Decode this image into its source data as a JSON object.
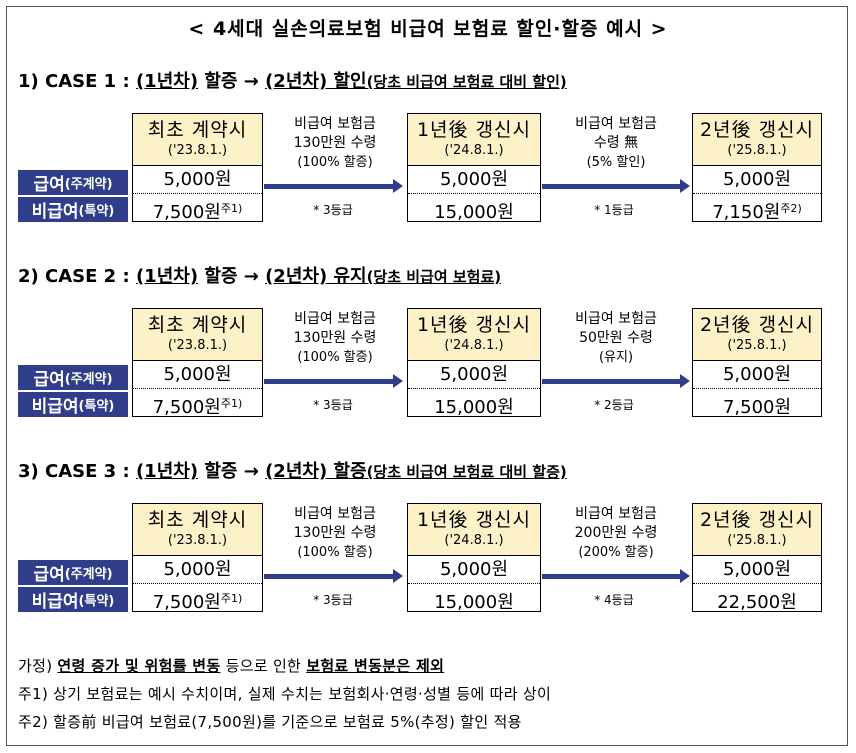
{
  "title": "< 4세대 실손의료보험 비급여 보험료 할인·할증 예시 >",
  "row_labels": {
    "covered": "급여",
    "covered_sub": "(주계약)",
    "noncovered": "비급여",
    "noncovered_sub": "(특약)"
  },
  "cases": [
    {
      "head_main_1": "1) CASE 1 : ",
      "head_u1": "(1년차)",
      "head_main_2": " 할증 → ",
      "head_u2": "(2년차) 할인",
      "head_note": "(당초 비급여 보험료 대비 할인)",
      "box1": {
        "title": "최초 계약시",
        "date": "('23.8.1.)",
        "covered": "5,000원",
        "noncovered": "7,500원",
        "sup": "주1)"
      },
      "mid1": {
        "l1": "비급여 보험금",
        "l2": "130만원 수령",
        "l3": "(100% 할증)",
        "grade": "* 3등급"
      },
      "box2": {
        "title": "1년後 갱신시",
        "date": "('24.8.1.)",
        "covered": "5,000원",
        "noncovered": "15,000원",
        "sup": ""
      },
      "mid2": {
        "l1": "비급여 보험금",
        "l2": "수령 無",
        "l3": "(5% 할인)",
        "grade": "* 1등급"
      },
      "box3": {
        "title": "2년後 갱신시",
        "date": "('25.8.1.)",
        "covered": "5,000원",
        "noncovered": "7,150원",
        "sup": "주2)"
      }
    },
    {
      "head_main_1": "2) CASE 2 : ",
      "head_u1": "(1년차)",
      "head_main_2": " 할증 → ",
      "head_u2": "(2년차) 유지",
      "head_note": "(당초 비급여 보험료)",
      "box1": {
        "title": "최초 계약시",
        "date": "('23.8.1.)",
        "covered": "5,000원",
        "noncovered": "7,500원",
        "sup": "주1)"
      },
      "mid1": {
        "l1": "비급여 보험금",
        "l2": "130만원 수령",
        "l3": "(100% 할증)",
        "grade": "* 3등급"
      },
      "box2": {
        "title": "1년後 갱신시",
        "date": "('24.8.1.)",
        "covered": "5,000원",
        "noncovered": "15,000원",
        "sup": ""
      },
      "mid2": {
        "l1": "비급여 보험금",
        "l2": "50만원 수령",
        "l3": "(유지)",
        "grade": "* 2등급"
      },
      "box3": {
        "title": "2년後 갱신시",
        "date": "('25.8.1.)",
        "covered": "5,000원",
        "noncovered": "7,500원",
        "sup": ""
      }
    },
    {
      "head_main_1": "3) CASE 3 : ",
      "head_u1": "(1년차)",
      "head_main_2": " 할증 → ",
      "head_u2": "(2년차) 할증",
      "head_note": "(당초 비급여 보험료 대비 할증)",
      "box1": {
        "title": "최초 계약시",
        "date": "('23.8.1.)",
        "covered": "5,000원",
        "noncovered": "7,500원",
        "sup": "주1)"
      },
      "mid1": {
        "l1": "비급여 보험금",
        "l2": "130만원 수령",
        "l3": "(100% 할증)",
        "grade": "* 3등급"
      },
      "box2": {
        "title": "1년後 갱신시",
        "date": "('24.8.1.)",
        "covered": "5,000원",
        "noncovered": "15,000원",
        "sup": ""
      },
      "mid2": {
        "l1": "비급여 보험금",
        "l2": "200만원 수령",
        "l3": "(200% 할증)",
        "grade": "* 4등급"
      },
      "box3": {
        "title": "2년後 갱신시",
        "date": "('25.8.1.)",
        "covered": "5,000원",
        "noncovered": "22,500원",
        "sup": ""
      }
    }
  ],
  "notes": {
    "assume_prefix": "가정) ",
    "assume_b1": "연령 증가 및 위험률 변동",
    "assume_mid": " 등으로 인한 ",
    "assume_b2": "보험료 변동분은 제외",
    "n1": "주1) 상기 보험료는 예시 수치이며, 실제 수치는 보험회사·연령·성별 등에 따라 상이",
    "n2": "주2) 할증前 비급여 보험료(7,500원)를 기준으로 보험료 5%(추정) 할인 적용"
  },
  "colors": {
    "label_bg": "#2f3d8a",
    "header_bg": "#fdf1c7",
    "arrow": "#2f3d8a"
  }
}
